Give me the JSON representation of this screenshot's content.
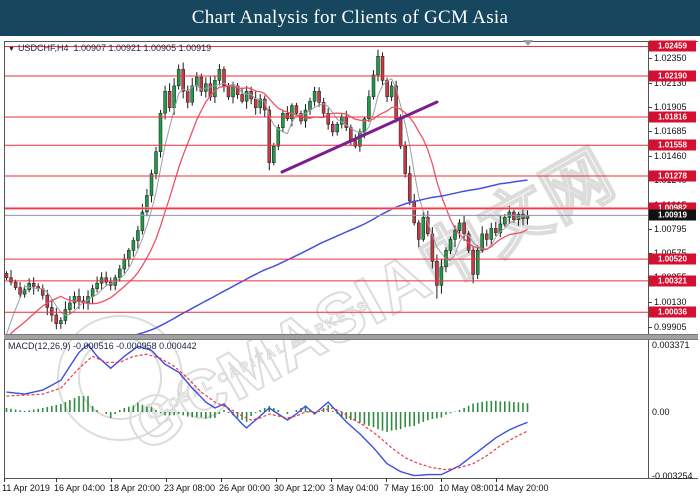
{
  "title": "Chart Analysis for Clients of GCM Asia",
  "colors": {
    "titlebar_bg": "#17465f",
    "title_text": "#ffffff",
    "bull_candle": "#1f9a47",
    "bear_candle": "#c43a45",
    "candle_outline": "#1a1a1a",
    "ma_fast_gray": "#9aa0a6",
    "ma_mid_red": "#ef5068",
    "ma_slow_blue": "#4450e0",
    "level_line_red": "#e8303e",
    "level_band_pink": "#ff8f9e",
    "current_price_line": "#8a97a8",
    "tag_red_bg": "#d50f2f",
    "tag_black_bg": "#111111",
    "trendline_purple": "#7d1d8e",
    "macd_line_blue": "#3b4fe0",
    "macd_signal_red": "#e83e4e",
    "macd_hist_green": "#2e8b3f",
    "watermark_gray": "#dcdcdc",
    "frame_gray": "#555555",
    "separator_gray": "#a0a0a0"
  },
  "symbol_info": {
    "marker": "▼",
    "symbol": "USDCHF,H4",
    "ohlc": "1.00907 1.00921 1.00905 1.00919"
  },
  "watermark": {
    "brand": "GCMASIA中文网",
    "tagline": "GLOBAL CAPITAL MARKETS"
  },
  "price_axis": {
    "plain_labels": [
      "1.02350",
      "1.02130",
      "1.01905",
      "1.01685",
      "1.01460",
      "1.01240",
      "1.01015",
      "1.00795",
      "1.00575",
      "1.00355",
      "1.00130",
      "0.99905"
    ],
    "tag_labels": [
      "1.02459",
      "1.02190",
      "1.01816",
      "1.01558",
      "1.01278",
      "1.00982",
      "1.00520",
      "1.00321",
      "1.00036"
    ],
    "current_price_label": "1.00919"
  },
  "time_axis": {
    "labels": [
      "11 Apr 2019",
      "16 Apr 04:00",
      "18 Apr 20:00",
      "23 Apr 08:00",
      "26 Apr 00:00",
      "30 Apr 12:00",
      "3 May 04:00",
      "7 May 16:00",
      "10 May 08:00",
      "14 May 20:00"
    ],
    "positions": [
      2,
      54,
      109,
      164,
      219,
      274,
      329,
      384,
      439,
      494
    ]
  },
  "macd": {
    "label": "MACD(12,26,9)",
    "values": "-0.000516 -0.000958 0.000442",
    "axis_labels": {
      "top": "0.003371",
      "zero": "0.00",
      "bottom": "-0.003254"
    }
  },
  "chart_data": {
    "type": "candlestick",
    "symbol": "USDCHF",
    "timeframe": "H4",
    "title": "USDCHF H4 with MACD(12,26,9)",
    "ylim": [
      0.99837,
      1.025
    ],
    "macd_ylim": [
      -0.003254,
      0.003371
    ],
    "bars": 116,
    "first_open": 1.0039,
    "closes": [
      1.0035,
      1.0031,
      1.0026,
      1.002,
      1.0024,
      1.003,
      1.0027,
      1.0025,
      1.0019,
      1.0008,
      1.0001,
      0.9993,
      0.9996,
      1.0006,
      1.0012,
      1.0018,
      1.0014,
      1.0012,
      1.0018,
      1.0025,
      1.003,
      1.0035,
      1.0031,
      1.0028,
      1.0035,
      1.0043,
      1.0052,
      1.006,
      1.0069,
      1.0078,
      1.0095,
      1.011,
      1.013,
      1.015,
      1.0185,
      1.0205,
      1.019,
      1.021,
      1.0225,
      1.0205,
      1.0195,
      1.021,
      1.0218,
      1.0205,
      1.0212,
      1.02,
      1.0215,
      1.0225,
      1.021,
      1.02,
      1.021,
      1.0202,
      1.0196,
      1.0205,
      1.0198,
      1.019,
      1.0198,
      1.0188,
      1.014,
      1.0155,
      1.0172,
      1.0185,
      1.018,
      1.0192,
      1.0185,
      1.0178,
      1.0188,
      1.0196,
      1.0205,
      1.0195,
      1.0185,
      1.0175,
      1.0168,
      1.0175,
      1.0182,
      1.0172,
      1.016,
      1.0155,
      1.0168,
      1.018,
      1.02,
      1.022,
      1.0237,
      1.0215,
      1.02,
      1.021,
      1.018,
      1.0155,
      1.013,
      1.0105,
      1.0085,
      1.007,
      1.009,
      1.0075,
      1.005,
      1.0028,
      1.0045,
      1.006,
      1.007,
      1.0078,
      1.0085,
      1.0075,
      1.006,
      1.0038,
      1.006,
      1.0075,
      1.007,
      1.008,
      1.0076,
      1.0084,
      1.009,
      1.0095,
      1.0088,
      1.0093,
      1.0089,
      1.00919
    ],
    "wick_overrides": {
      "11": {
        "low": 0.9988
      },
      "58": {
        "low": 1.0133
      },
      "82": {
        "high": 1.0243
      },
      "95": {
        "low": 1.0016
      },
      "103": {
        "low": 1.003
      }
    },
    "levels": [
      1.02459,
      1.0219,
      1.01816,
      1.01558,
      1.01278,
      1.00982,
      1.0052,
      1.00321,
      1.00036
    ],
    "highlighted_level": 1.00982,
    "current_price": 1.00919,
    "trendline": {
      "x1": 282,
      "y1": 172,
      "x2": 437,
      "y2": 102
    },
    "moving_averages": [
      {
        "name": "fast",
        "period": 5
      },
      {
        "name": "medium",
        "period": 13
      },
      {
        "name": "slow",
        "period": 110
      }
    ],
    "macd_points": [
      [
        0,
        0.001
      ],
      [
        4,
        0.0009
      ],
      [
        8,
        0.0011
      ],
      [
        12,
        0.0016
      ],
      [
        16,
        0.003
      ],
      [
        18,
        0.0034
      ],
      [
        20,
        0.0028
      ],
      [
        23,
        0.0022
      ],
      [
        26,
        0.0028
      ],
      [
        29,
        0.0033
      ],
      [
        32,
        0.0031
      ],
      [
        35,
        0.0024
      ],
      [
        38,
        0.002
      ],
      [
        41,
        0.0012
      ],
      [
        44,
        0.0005
      ],
      [
        46,
        0.0002
      ],
      [
        48,
        0.0004
      ],
      [
        50,
        -0.0001
      ],
      [
        52,
        -0.0006
      ],
      [
        53,
        -0.0008
      ],
      [
        55,
        -0.0004
      ],
      [
        57,
        0.0
      ],
      [
        58,
        0.0002
      ],
      [
        60,
        -0.0001
      ],
      [
        62,
        -0.0004
      ],
      [
        64,
        -0.0001
      ],
      [
        66,
        0.0003
      ],
      [
        68,
        -0.0001
      ],
      [
        70,
        0.0003
      ],
      [
        71,
        0.0005
      ],
      [
        73,
        0.0
      ],
      [
        75,
        -0.0005
      ],
      [
        78,
        -0.0011
      ],
      [
        81,
        -0.0018
      ],
      [
        84,
        -0.0026
      ],
      [
        87,
        -0.003
      ],
      [
        90,
        -0.0032
      ],
      [
        93,
        -0.00315
      ],
      [
        96,
        -0.00315
      ],
      [
        100,
        -0.0027
      ],
      [
        104,
        -0.002
      ],
      [
        108,
        -0.0013
      ],
      [
        111,
        -0.0009
      ],
      [
        113,
        -0.0007
      ],
      [
        115,
        -0.000516
      ]
    ],
    "signal_points": [
      [
        0,
        0.0008
      ],
      [
        4,
        0.00085
      ],
      [
        8,
        0.0009
      ],
      [
        12,
        0.0012
      ],
      [
        16,
        0.0022
      ],
      [
        19,
        0.0028
      ],
      [
        22,
        0.0025
      ],
      [
        25,
        0.0025
      ],
      [
        28,
        0.0028
      ],
      [
        31,
        0.0029
      ],
      [
        34,
        0.0027
      ],
      [
        37,
        0.0023
      ],
      [
        40,
        0.0017
      ],
      [
        43,
        0.001
      ],
      [
        46,
        0.0005
      ],
      [
        49,
        0.0002
      ],
      [
        52,
        -0.0002
      ],
      [
        54,
        -0.0004
      ],
      [
        56,
        -0.0003
      ],
      [
        58,
        -0.0001
      ],
      [
        60,
        -0.0002
      ],
      [
        62,
        -0.0003
      ],
      [
        64,
        -0.0002
      ],
      [
        66,
        0.0
      ],
      [
        68,
        0.0
      ],
      [
        70,
        0.0001
      ],
      [
        72,
        0.0002
      ],
      [
        74,
        0.0
      ],
      [
        76,
        -0.0003
      ],
      [
        79,
        -0.0007
      ],
      [
        82,
        -0.0012
      ],
      [
        85,
        -0.0018
      ],
      [
        88,
        -0.0023
      ],
      [
        91,
        -0.0026
      ],
      [
        94,
        -0.0028
      ],
      [
        97,
        -0.0029
      ],
      [
        100,
        -0.0028
      ],
      [
        103,
        -0.0026
      ],
      [
        106,
        -0.0022
      ],
      [
        109,
        -0.0017
      ],
      [
        112,
        -0.0013
      ],
      [
        115,
        -0.000958
      ]
    ]
  }
}
